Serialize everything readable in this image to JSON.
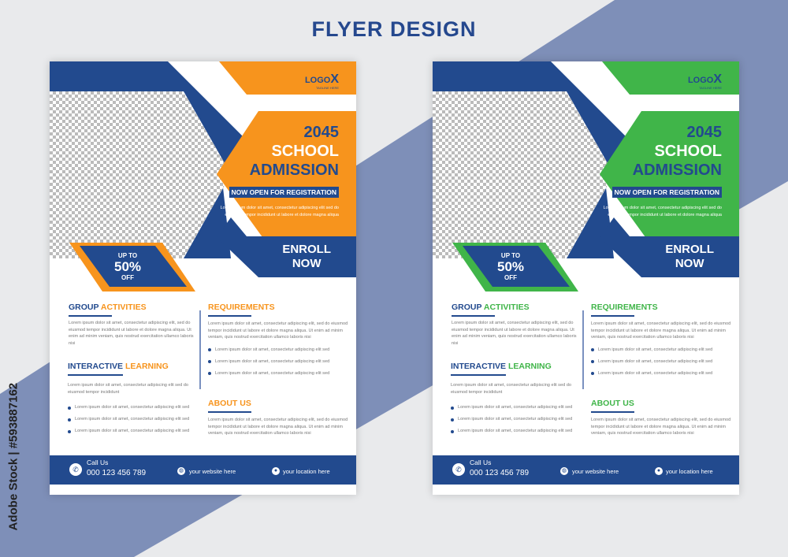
{
  "page_title": "FLYER DESIGN",
  "credit": "Adobe Stock | #593887162",
  "colors": {
    "background": "#e9eaec",
    "band": "#7e8fb8",
    "blue": "#224a8e"
  },
  "flyers": [
    {
      "accent": "#f7941d",
      "logo": {
        "text": "LOGO",
        "mark": "X",
        "tagline": "TAGLINE HERE"
      },
      "headline": {
        "year": "2045",
        "line1": "SCHOOL",
        "line2": "ADMISSION"
      },
      "registration": "NOW OPEN FOR REGISTRATION",
      "lead": "Lorem ipsum dolor sit amet, consectetur adipiscing elit sed do eiusmod tempor incididunt ut labore et dolore magna aliqua",
      "enroll": [
        "ENROLL",
        "NOW"
      ],
      "discount": {
        "top": "UP TO",
        "value": "50%",
        "bottom": "OFF"
      },
      "group": {
        "title_a": "GROUP",
        "title_b": "ACTIVITIES",
        "text": "Lorem ipsum dolor sit amet, consectetur adipiscing elit, sed do eiusmod tempor incididunt ut labore et dolore magna aliqua. Ut enim ad minim veniam, quis nostrud exercitation ullamco laboris nisi"
      },
      "interactive": {
        "title_a": "INTERACTIVE",
        "title_b": "LEARNING",
        "text": "Lorem ipsum dolor sit amet, consectetur adipiscing elit sed do eiusmod tempor incididunt",
        "bullets": [
          "Lorem ipsum dolor sit amet, consectetur adipiscing elit sed",
          "Lorem ipsum dolor sit amet, consectetur adipiscing elit sed",
          "Lorem ipsum dolor sit amet, consectetur adipiscing elit sed"
        ]
      },
      "requirements": {
        "title": "REQUIREMENTS",
        "text": "Lorem ipsum dolor sit amet, consectetur adipiscing elit, sed do eiusmod tempor incididunt ut labore et dolore magna aliqua. Ut enim ad minim veniam, quis nostrud exercitation ullamco laboris nisi",
        "bullets": [
          "Lorem ipsum dolor sit amet, consectetur adipiscing elit sed",
          "Lorem ipsum dolor sit amet, consectetur adipiscing elit sed",
          "Lorem ipsum dolor sit amet, consectetur adipiscing elit sed"
        ]
      },
      "about": {
        "title": "ABOUT US",
        "text": "Lorem ipsum dolor sit amet, consectetur adipiscing elit, sed do eiusmod tempor incididunt ut labore et dolore magna aliqua. Ut enim ad minim veniam, quis nostrud exercitation ullamco laboris nisi"
      },
      "footer": {
        "call_label": "Call Us",
        "phone": "000 123 456 789",
        "website": "your website here",
        "location": "your location here"
      }
    },
    {
      "accent": "#40b549",
      "logo": {
        "text": "LOGO",
        "mark": "X",
        "tagline": "TAGLINE HERE"
      },
      "headline": {
        "year": "2045",
        "line1": "SCHOOL",
        "line2": "ADMISSION"
      },
      "registration": "NOW OPEN FOR REGISTRATION",
      "lead": "Lorem ipsum dolor sit amet, consectetur adipiscing elit sed do eiusmod tempor incididunt ut labore et dolore magna aliqua",
      "enroll": [
        "ENROLL",
        "NOW"
      ],
      "discount": {
        "top": "UP TO",
        "value": "50%",
        "bottom": "OFF"
      },
      "group": {
        "title_a": "GROUP",
        "title_b": "ACTIVITIES",
        "text": "Lorem ipsum dolor sit amet, consectetur adipiscing elit, sed do eiusmod tempor incididunt ut labore et dolore magna aliqua. Ut enim ad minim veniam, quis nostrud exercitation ullamco laboris nisi"
      },
      "interactive": {
        "title_a": "INTERACTIVE",
        "title_b": "LEARNING",
        "text": "Lorem ipsum dolor sit amet, consectetur adipiscing elit sed do eiusmod tempor incididunt",
        "bullets": [
          "Lorem ipsum dolor sit amet, consectetur adipiscing elit sed",
          "Lorem ipsum dolor sit amet, consectetur adipiscing elit sed",
          "Lorem ipsum dolor sit amet, consectetur adipiscing elit sed"
        ]
      },
      "requirements": {
        "title": "REQUIREMENTS",
        "text": "Lorem ipsum dolor sit amet, consectetur adipiscing elit, sed do eiusmod tempor incididunt ut labore et dolore magna aliqua. Ut enim ad minim veniam, quis nostrud exercitation ullamco laboris nisi",
        "bullets": [
          "Lorem ipsum dolor sit amet, consectetur adipiscing elit sed",
          "Lorem ipsum dolor sit amet, consectetur adipiscing elit sed",
          "Lorem ipsum dolor sit amet, consectetur adipiscing elit sed"
        ]
      },
      "about": {
        "title": "ABOUT US",
        "text": "Lorem ipsum dolor sit amet, consectetur adipiscing elit, sed do eiusmod tempor incididunt ut labore et dolore magna aliqua. Ut enim ad minim veniam, quis nostrud exercitation ullamco laboris nisi"
      },
      "footer": {
        "call_label": "Call Us",
        "phone": "000 123 456 789",
        "website": "your website here",
        "location": "your location here"
      }
    }
  ]
}
